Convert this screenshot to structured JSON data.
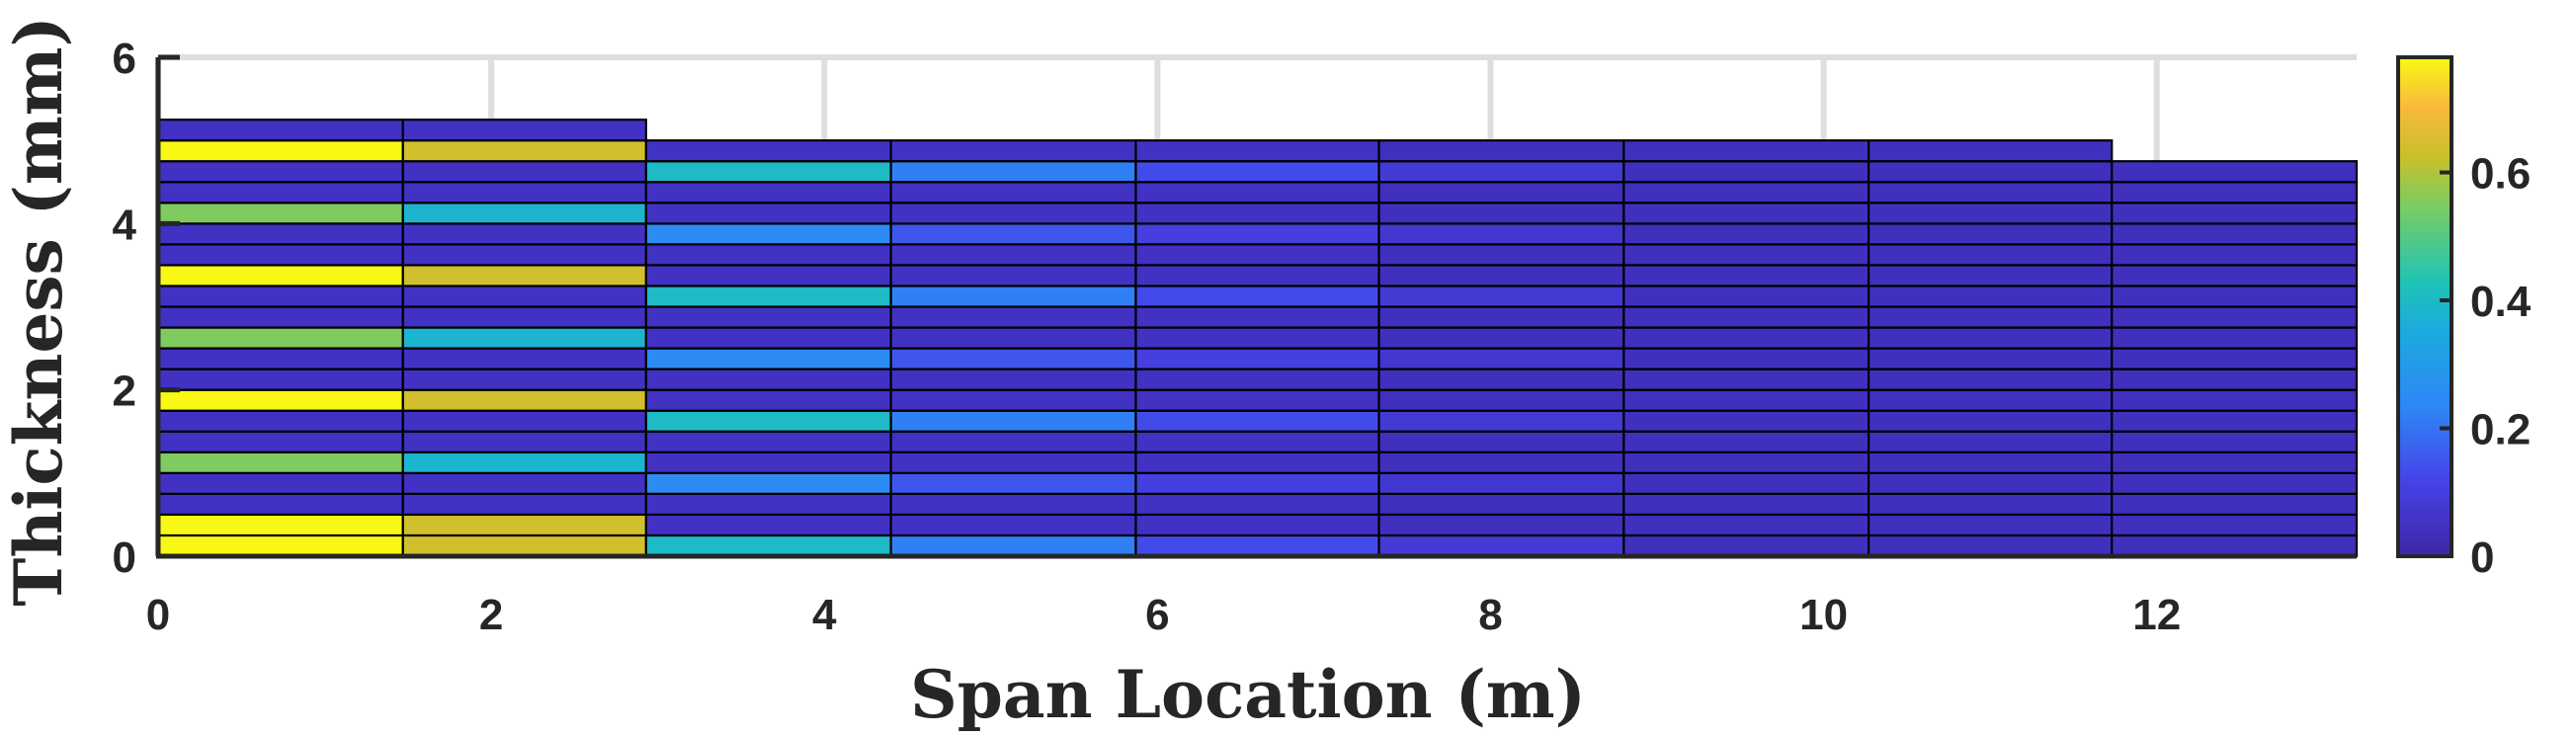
{
  "chart_data": {
    "type": "heatmap",
    "title": "",
    "xlabel": "Span Location (m)",
    "ylabel": "Thickness (mm)",
    "xlim": [
      0,
      13.2
    ],
    "ylim": [
      0,
      6
    ],
    "xticks": [
      "0",
      "2",
      "4",
      "6",
      "8",
      "10",
      "12"
    ],
    "yticks": [
      "0",
      "2",
      "4",
      "6"
    ],
    "grid": "x only",
    "colormap": "parula",
    "colorbar": {
      "ticks": [
        "0",
        "0.2",
        "0.4",
        "0.6"
      ],
      "range": [
        0,
        0.78
      ]
    },
    "segments": [
      {
        "x_start": 0.0,
        "x_end": 1.47,
        "thickness_total": 5.25,
        "layer_thickness": 0.25,
        "values": [
          0.78,
          0.78,
          0.05,
          0.05,
          0.55,
          0.05,
          0.05,
          0.78,
          0.05,
          0.05,
          0.55,
          0.05,
          0.05,
          0.78,
          0.05,
          0.05,
          0.55,
          0.05,
          0.05,
          0.78,
          0.05
        ]
      },
      {
        "x_start": 1.47,
        "x_end": 2.93,
        "thickness_total": 5.25,
        "layer_thickness": 0.25,
        "values": [
          0.64,
          0.64,
          0.05,
          0.05,
          0.38,
          0.05,
          0.05,
          0.64,
          0.05,
          0.05,
          0.38,
          0.05,
          0.05,
          0.64,
          0.05,
          0.05,
          0.38,
          0.05,
          0.05,
          0.64,
          0.05
        ]
      },
      {
        "x_start": 2.93,
        "x_end": 4.4,
        "thickness_total": 5.0,
        "layer_thickness": 0.25,
        "values": [
          0.4,
          0.05,
          0.05,
          0.25,
          0.05,
          0.05,
          0.4,
          0.05,
          0.05,
          0.25,
          0.05,
          0.05,
          0.4,
          0.05,
          0.05,
          0.25,
          0.05,
          0.05,
          0.4,
          0.05
        ]
      },
      {
        "x_start": 4.4,
        "x_end": 5.87,
        "thickness_total": 5.0,
        "layer_thickness": 0.25,
        "values": [
          0.22,
          0.05,
          0.05,
          0.15,
          0.05,
          0.05,
          0.22,
          0.05,
          0.05,
          0.15,
          0.05,
          0.05,
          0.22,
          0.05,
          0.05,
          0.15,
          0.05,
          0.05,
          0.22,
          0.05
        ]
      },
      {
        "x_start": 5.87,
        "x_end": 7.33,
        "thickness_total": 5.0,
        "layer_thickness": 0.25,
        "values": [
          0.13,
          0.05,
          0.05,
          0.1,
          0.05,
          0.05,
          0.13,
          0.05,
          0.05,
          0.1,
          0.05,
          0.05,
          0.13,
          0.05,
          0.05,
          0.1,
          0.05,
          0.05,
          0.13,
          0.05
        ]
      },
      {
        "x_start": 7.33,
        "x_end": 8.8,
        "thickness_total": 5.0,
        "layer_thickness": 0.25,
        "values": [
          0.08,
          0.04,
          0.04,
          0.07,
          0.04,
          0.04,
          0.08,
          0.04,
          0.04,
          0.07,
          0.04,
          0.04,
          0.08,
          0.04,
          0.04,
          0.07,
          0.04,
          0.04,
          0.08,
          0.04
        ]
      },
      {
        "x_start": 8.8,
        "x_end": 10.27,
        "thickness_total": 5.0,
        "layer_thickness": 0.25,
        "values": [
          0.04,
          0.04,
          0.04,
          0.04,
          0.04,
          0.04,
          0.04,
          0.04,
          0.04,
          0.04,
          0.04,
          0.04,
          0.04,
          0.04,
          0.04,
          0.04,
          0.04,
          0.04,
          0.04,
          0.04
        ]
      },
      {
        "x_start": 10.27,
        "x_end": 11.73,
        "thickness_total": 5.0,
        "layer_thickness": 0.25,
        "values": [
          0.04,
          0.04,
          0.04,
          0.04,
          0.04,
          0.04,
          0.04,
          0.04,
          0.04,
          0.04,
          0.04,
          0.04,
          0.04,
          0.04,
          0.04,
          0.04,
          0.04,
          0.04,
          0.04,
          0.04
        ]
      },
      {
        "x_start": 11.73,
        "x_end": 13.2,
        "thickness_total": 4.75,
        "layer_thickness": 0.25,
        "values": [
          0.04,
          0.04,
          0.04,
          0.04,
          0.04,
          0.04,
          0.04,
          0.04,
          0.04,
          0.04,
          0.04,
          0.04,
          0.04,
          0.04,
          0.04,
          0.04,
          0.04,
          0.04,
          0.04
        ]
      }
    ]
  }
}
